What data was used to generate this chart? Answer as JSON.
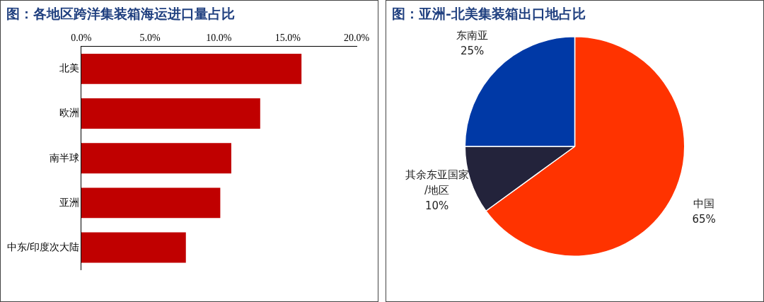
{
  "chart_data": [
    {
      "type": "bar",
      "title": "图：各地区跨洋集装箱海运进口量占比",
      "orientation": "horizontal",
      "categories": [
        "北美",
        "欧洲",
        "南半球",
        "亚洲",
        "中东/印度次大陆"
      ],
      "values": [
        16.0,
        13.0,
        10.9,
        10.1,
        7.6
      ],
      "color": "#c00000",
      "xlim": [
        0,
        20
      ],
      "xticks": [
        {
          "value": 0,
          "label": "0.0%"
        },
        {
          "value": 5,
          "label": "5.0%"
        },
        {
          "value": 10,
          "label": "10.0%"
        },
        {
          "value": 15,
          "label": "15.0%"
        },
        {
          "value": 20,
          "label": "20.0%"
        }
      ],
      "grid": false,
      "legend": false
    },
    {
      "type": "pie",
      "title": "图：亚洲-北美集装箱出口地占比",
      "categories": [
        "中国",
        "其余东亚国家/地区",
        "东南亚"
      ],
      "values": [
        65,
        10,
        25
      ],
      "colors": [
        "#ff3300",
        "#23233b",
        "#0039a6"
      ],
      "value_labels": [
        "65%",
        "10%",
        "25%"
      ],
      "legend": false
    }
  ]
}
